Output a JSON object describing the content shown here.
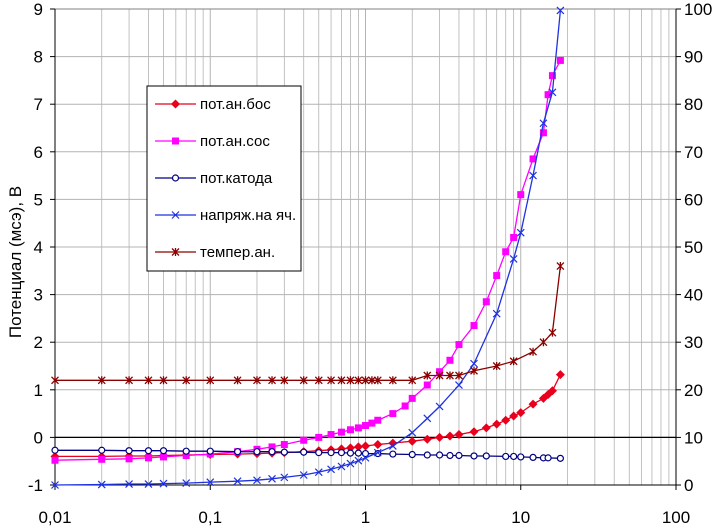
{
  "chart_data": {
    "type": "line",
    "xscale": "log",
    "xlim": [
      0.01,
      100
    ],
    "ylim": [
      -1,
      9
    ],
    "y2lim": [
      0,
      100
    ],
    "ylabel": "Потенциал (мсэ), В",
    "xticks": [
      "0,01",
      "0,1",
      "1",
      "10",
      "100"
    ],
    "yticks": [
      "-1",
      "0",
      "1",
      "2",
      "3",
      "4",
      "5",
      "6",
      "7",
      "8",
      "9"
    ],
    "y2ticks": [
      "0",
      "10",
      "20",
      "30",
      "40",
      "50",
      "60",
      "70",
      "80",
      "90",
      "100"
    ],
    "series": [
      {
        "name": "пот.ан.бос",
        "color": "#e8001c",
        "marker": "diamond",
        "axis": "left",
        "x": [
          0.01,
          0.02,
          0.03,
          0.04,
          0.05,
          0.07,
          0.1,
          0.15,
          0.2,
          0.25,
          0.3,
          0.4,
          0.5,
          0.6,
          0.7,
          0.8,
          0.9,
          1,
          1.2,
          1.5,
          2,
          2.5,
          3,
          3.5,
          4,
          5,
          6,
          7,
          8,
          9,
          10,
          12,
          14,
          15,
          16,
          18
        ],
        "y": [
          -0.4,
          -0.4,
          -0.39,
          -0.39,
          -0.38,
          -0.37,
          -0.36,
          -0.35,
          -0.34,
          -0.33,
          -0.32,
          -0.3,
          -0.28,
          -0.26,
          -0.24,
          -0.22,
          -0.2,
          -0.18,
          -0.15,
          -0.12,
          -0.08,
          -0.04,
          0.0,
          0.03,
          0.06,
          0.12,
          0.2,
          0.28,
          0.36,
          0.45,
          0.52,
          0.7,
          0.82,
          0.9,
          0.98,
          1.32
        ]
      },
      {
        "name": "пот.ан.сос",
        "color": "#ff00ff",
        "marker": "square",
        "axis": "left",
        "x": [
          0.01,
          0.02,
          0.03,
          0.04,
          0.05,
          0.07,
          0.1,
          0.15,
          0.2,
          0.25,
          0.3,
          0.4,
          0.5,
          0.6,
          0.7,
          0.8,
          0.9,
          1,
          1.1,
          1.2,
          1.5,
          1.8,
          2,
          2.5,
          3,
          3.5,
          4,
          5,
          6,
          7,
          8,
          9,
          10,
          12,
          14,
          15,
          16,
          18
        ],
        "y": [
          -0.48,
          -0.46,
          -0.45,
          -0.43,
          -0.41,
          -0.38,
          -0.35,
          -0.3,
          -0.25,
          -0.2,
          -0.15,
          -0.06,
          0.0,
          0.06,
          0.11,
          0.16,
          0.2,
          0.25,
          0.3,
          0.36,
          0.5,
          0.66,
          0.82,
          1.1,
          1.38,
          1.62,
          1.95,
          2.35,
          2.85,
          3.4,
          3.9,
          4.2,
          5.1,
          5.85,
          6.4,
          7.2,
          7.6,
          7.92
        ]
      },
      {
        "name": "пот.катода",
        "color": "#000080",
        "marker": "circle",
        "axis": "left",
        "x": [
          0.01,
          0.02,
          0.03,
          0.04,
          0.05,
          0.07,
          0.1,
          0.15,
          0.2,
          0.25,
          0.3,
          0.4,
          0.5,
          0.6,
          0.7,
          0.8,
          0.9,
          1,
          1.2,
          1.5,
          2,
          2.5,
          3,
          3.5,
          4,
          5,
          6,
          8,
          9,
          10,
          12,
          14,
          15,
          18
        ],
        "y": [
          -0.27,
          -0.27,
          -0.28,
          -0.28,
          -0.28,
          -0.29,
          -0.29,
          -0.3,
          -0.3,
          -0.3,
          -0.31,
          -0.31,
          -0.32,
          -0.32,
          -0.32,
          -0.33,
          -0.33,
          -0.34,
          -0.34,
          -0.35,
          -0.36,
          -0.37,
          -0.37,
          -0.38,
          -0.38,
          -0.39,
          -0.39,
          -0.4,
          -0.4,
          -0.41,
          -0.42,
          -0.43,
          -0.43,
          -0.44
        ]
      },
      {
        "name": "напряж.на яч.",
        "color": "#1f32e0",
        "marker": "x",
        "axis": "left",
        "x": [
          0.01,
          0.02,
          0.03,
          0.04,
          0.05,
          0.07,
          0.1,
          0.15,
          0.2,
          0.25,
          0.3,
          0.4,
          0.5,
          0.6,
          0.7,
          0.8,
          0.9,
          1,
          1.2,
          1.5,
          2,
          2.5,
          3,
          4,
          5,
          7,
          9,
          10,
          12,
          14,
          16,
          18
        ],
        "y": [
          -1.0,
          -0.99,
          -0.98,
          -0.98,
          -0.97,
          -0.96,
          -0.94,
          -0.92,
          -0.9,
          -0.87,
          -0.84,
          -0.79,
          -0.73,
          -0.67,
          -0.61,
          -0.55,
          -0.49,
          -0.43,
          -0.32,
          -0.18,
          0.1,
          0.4,
          0.65,
          1.1,
          1.55,
          2.6,
          3.75,
          4.3,
          5.5,
          6.6,
          7.25,
          8.97
        ]
      },
      {
        "name": "темпер.ан.",
        "color": "#8b0000",
        "marker": "star",
        "axis": "right",
        "x": [
          0.01,
          0.02,
          0.03,
          0.04,
          0.05,
          0.07,
          0.1,
          0.15,
          0.2,
          0.25,
          0.3,
          0.4,
          0.5,
          0.6,
          0.7,
          0.8,
          0.9,
          1,
          1.1,
          1.2,
          1.5,
          2,
          2.5,
          3,
          3.5,
          4,
          5,
          7,
          9,
          12,
          14,
          16,
          18
        ],
        "y": [
          22,
          22,
          22,
          22,
          22,
          22,
          22,
          22,
          22,
          22,
          22,
          22,
          22,
          22,
          22,
          22,
          22,
          22,
          22,
          22,
          22,
          22,
          23,
          23,
          23,
          23,
          24,
          25,
          26,
          28,
          30,
          32,
          46
        ]
      }
    ]
  }
}
